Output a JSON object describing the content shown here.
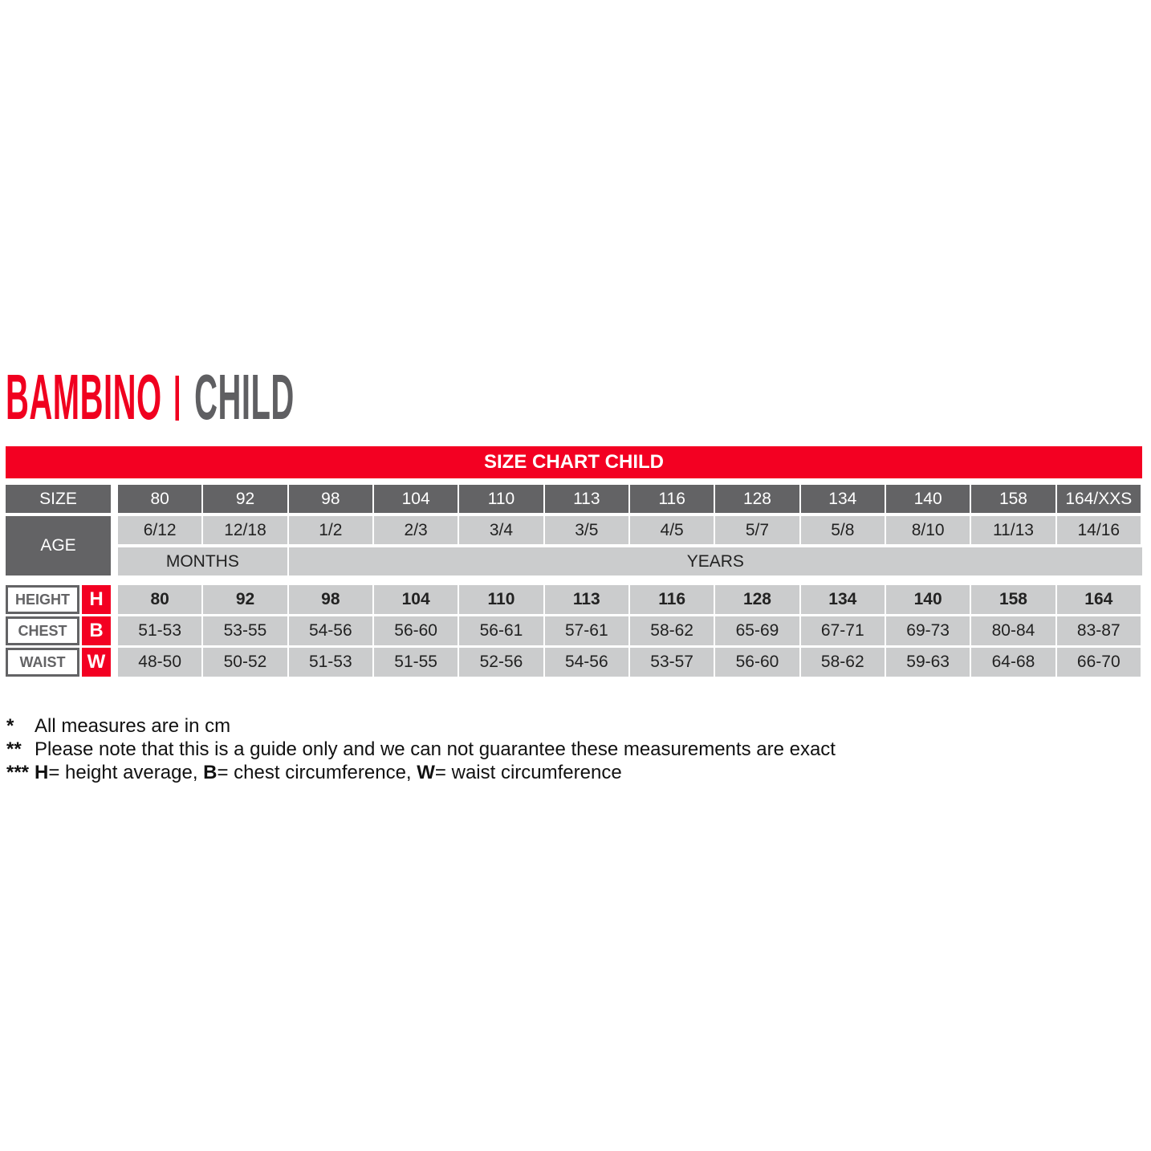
{
  "title": {
    "brand": "BAMBINO",
    "sub": "CHILD"
  },
  "banner": "SIZE CHART CHILD",
  "colors": {
    "accent": "#f30022",
    "dark": "#636365",
    "light": "#cbcccd"
  },
  "table": {
    "size_label": "SIZE",
    "age_label": "AGE",
    "sizes": [
      "80",
      "92",
      "98",
      "104",
      "110",
      "113",
      "116",
      "128",
      "134",
      "140",
      "158",
      "164/XXS"
    ],
    "ages": [
      "6/12",
      "12/18",
      "1/2",
      "2/3",
      "3/4",
      "3/5",
      "4/5",
      "5/7",
      "5/8",
      "8/10",
      "11/13",
      "14/16"
    ],
    "age_units": [
      {
        "label": "MONTHS",
        "span": 2
      },
      {
        "label": "YEARS",
        "span": 10
      }
    ],
    "measures": [
      {
        "label": "HEIGHT",
        "letter": "H",
        "values": [
          "80",
          "92",
          "98",
          "104",
          "110",
          "113",
          "116",
          "128",
          "134",
          "140",
          "158",
          "164"
        ]
      },
      {
        "label": "CHEST",
        "letter": "B",
        "values": [
          "51-53",
          "53-55",
          "54-56",
          "56-60",
          "56-61",
          "57-61",
          "58-62",
          "65-69",
          "67-71",
          "69-73",
          "80-84",
          "83-87"
        ]
      },
      {
        "label": "WAIST",
        "letter": "W",
        "values": [
          "48-50",
          "50-52",
          "51-53",
          "51-55",
          "52-56",
          "54-56",
          "53-57",
          "56-60",
          "58-62",
          "59-63",
          "64-68",
          "66-70"
        ]
      }
    ]
  },
  "notes": [
    {
      "mark": "*",
      "parts": [
        {
          "text": "All measures are in cm"
        }
      ]
    },
    {
      "mark": "**",
      "parts": [
        {
          "text": "Please note that this is a guide only and we can not guarantee these measurements are exact"
        }
      ]
    },
    {
      "mark": "***",
      "parts": [
        {
          "text": "H",
          "bold": true
        },
        {
          "text": "= height average, "
        },
        {
          "text": "B",
          "bold": true
        },
        {
          "text": "= chest circumference, "
        },
        {
          "text": "W",
          "bold": true
        },
        {
          "text": "= waist circumference"
        }
      ]
    }
  ]
}
